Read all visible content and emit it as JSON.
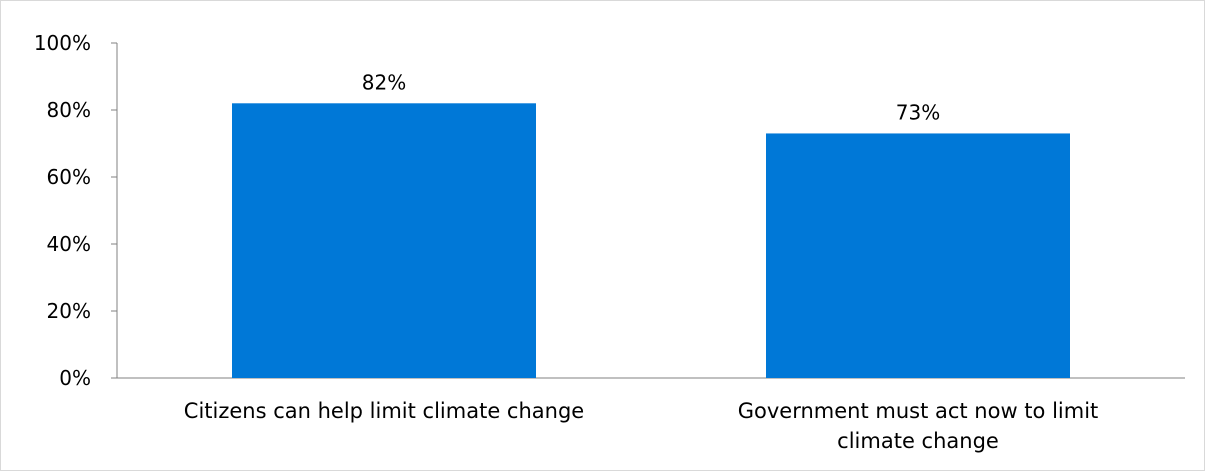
{
  "chart_data": {
    "type": "bar",
    "categories": [
      "Citizens can help limit climate change",
      "Government must act now to limit climate change"
    ],
    "category_lines": [
      [
        "Citizens can help limit climate change"
      ],
      [
        "Government must act now to limit",
        "climate change"
      ]
    ],
    "values": [
      82,
      73
    ],
    "data_labels": [
      "82%",
      "73%"
    ],
    "yticks": [
      "0%",
      "20%",
      "40%",
      "60%",
      "80%",
      "100%"
    ],
    "ylim": [
      0,
      100
    ],
    "grid": false,
    "legend": "none",
    "bar_color": "#0078D7",
    "axis_color": "#808080"
  }
}
